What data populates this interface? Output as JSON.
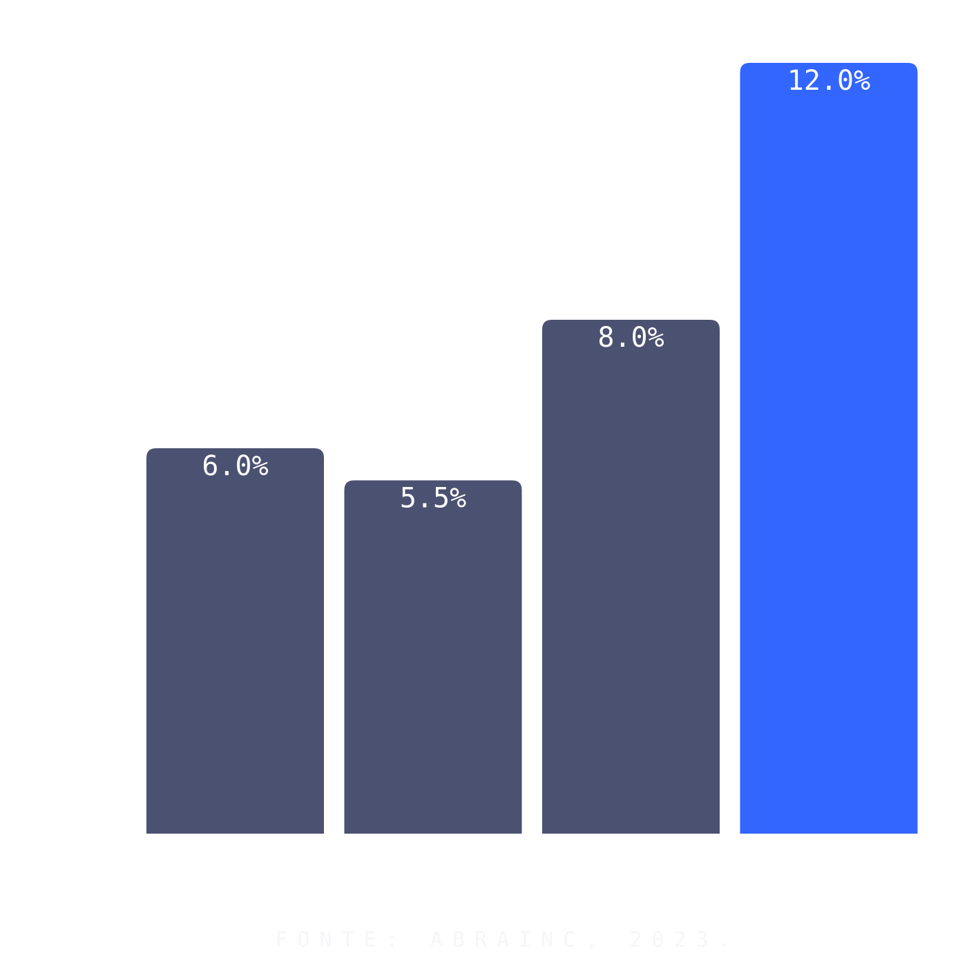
{
  "chart_data": {
    "type": "bar",
    "values": [
      6.0,
      5.5,
      8.0,
      12.0
    ],
    "value_labels": [
      "6.0%",
      "5.5%",
      "8.0%",
      "12.0%"
    ],
    "colors": [
      "#4b5170",
      "#4b5170",
      "#4b5170",
      "#3366ff"
    ],
    "ylim": [
      0,
      12
    ],
    "footnote": "FONTE: ABRAINC, 2023."
  }
}
